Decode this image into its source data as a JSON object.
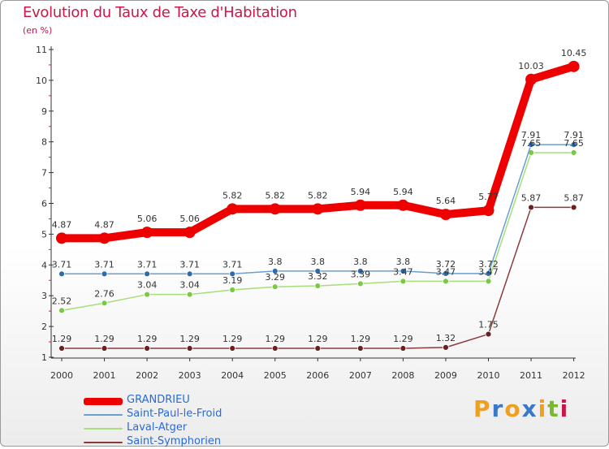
{
  "title": "Evolution du Taux de Taxe d'Habitation",
  "subtitle": "(en %)",
  "logo": {
    "text": "Proxiti",
    "letters": [
      {
        "char": "P",
        "color": "#f0a020"
      },
      {
        "char": "r",
        "color": "#3a78c8"
      },
      {
        "char": "o",
        "color": "#f0a020"
      },
      {
        "char": "x",
        "color": "#3a78c8"
      },
      {
        "char": "i",
        "color": "#f0a020"
      },
      {
        "char": "t",
        "color": "#7ab830"
      },
      {
        "char": "i",
        "color": "#c8184a"
      }
    ]
  },
  "chart_data": {
    "type": "line",
    "title": "Evolution du Taux de Taxe d'Habitation",
    "subtitle": "(en %)",
    "x": [
      "2000",
      "2001",
      "2002",
      "2003",
      "2004",
      "2005",
      "2006",
      "2007",
      "2008",
      "2009",
      "2010",
      "2011",
      "2012"
    ],
    "ylim": [
      1,
      11
    ],
    "yticks": [
      1,
      2,
      3,
      4,
      5,
      6,
      7,
      8,
      9,
      10,
      11
    ],
    "grid": false,
    "legend_position": "bottom-left",
    "series": [
      {
        "name": "GRANDRIEU",
        "color": "#ee0000",
        "values": [
          4.87,
          4.87,
          5.06,
          5.06,
          5.82,
          5.82,
          5.82,
          5.94,
          5.94,
          5.64,
          5.77,
          10.03,
          10.45
        ],
        "labels": [
          "4.87",
          "4.87",
          "5.06",
          "5.06",
          "5.82",
          "5.82",
          "5.82",
          "5.94",
          "5.94",
          "5.64",
          "5.77",
          "10.03",
          "10.45"
        ]
      },
      {
        "name": "Saint-Paul-le-Froid",
        "color": "#6a9fd0",
        "marker_color": "#2b6cb0",
        "values": [
          3.71,
          3.71,
          3.71,
          3.71,
          3.71,
          3.8,
          3.8,
          3.8,
          3.8,
          3.72,
          3.72,
          7.91,
          7.91
        ],
        "labels": [
          "3.71",
          "3.71",
          "3.71",
          "3.71",
          "3.71",
          "3.8",
          "3.8",
          "3.8",
          "3.8",
          "3.72",
          "3.72",
          "7.91",
          "7.91"
        ]
      },
      {
        "name": "Laval-Atger",
        "color": "#a6de7a",
        "marker_color": "#7ac943",
        "values": [
          2.52,
          2.76,
          3.04,
          3.04,
          3.19,
          3.29,
          3.32,
          3.39,
          3.47,
          3.47,
          3.47,
          7.65,
          7.65
        ],
        "labels": [
          "2.52",
          "2.76",
          "3.04",
          "3.04",
          "3.19",
          "3.29",
          "3.32",
          "3.39",
          "3.47",
          "3.47",
          "3.47",
          "7.65",
          "7.65"
        ]
      },
      {
        "name": "Saint-Symphorien",
        "color": "#8b3a3a",
        "marker_color": "#6b1f1f",
        "values": [
          1.29,
          1.29,
          1.29,
          1.29,
          1.29,
          1.29,
          1.29,
          1.29,
          1.29,
          1.32,
          1.75,
          5.87,
          5.87
        ],
        "labels": [
          "1.29",
          "1.29",
          "1.29",
          "1.29",
          "1.29",
          "1.29",
          "1.29",
          "1.29",
          "1.29",
          "1.32",
          "1.75",
          "5.87",
          "5.87"
        ]
      }
    ]
  }
}
